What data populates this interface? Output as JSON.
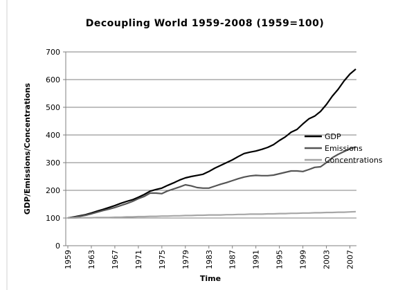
{
  "chart_data": {
    "type": "line",
    "title": "Decoupling World 1959-2008 (1959=100)",
    "x_label": "Time",
    "y_label": "GDP/Emissions/Concentrations",
    "x": [
      1959,
      1960,
      1961,
      1962,
      1963,
      1964,
      1965,
      1966,
      1967,
      1968,
      1969,
      1970,
      1971,
      1972,
      1973,
      1974,
      1975,
      1976,
      1977,
      1978,
      1979,
      1980,
      1981,
      1982,
      1983,
      1984,
      1985,
      1986,
      1987,
      1988,
      1989,
      1990,
      1991,
      1992,
      1993,
      1994,
      1995,
      1996,
      1997,
      1998,
      1999,
      2000,
      2001,
      2002,
      2003,
      2004,
      2005,
      2006,
      2007,
      2008
    ],
    "xlim": [
      1959,
      2008
    ],
    "xticks": [
      1959,
      1963,
      1967,
      1971,
      1975,
      1979,
      1983,
      1987,
      1991,
      1995,
      1999,
      2003,
      2007
    ],
    "ylim": [
      0,
      700
    ],
    "yticks": [
      0,
      100,
      200,
      300,
      400,
      500,
      600,
      700
    ],
    "grid": true,
    "legend": "right",
    "series": [
      {
        "name": "GDP",
        "color": "#000000",
        "values": [
          100,
          104,
          108,
          112,
          118,
          125,
          131,
          138,
          145,
          153,
          160,
          166,
          175,
          185,
          197,
          203,
          208,
          218,
          227,
          237,
          245,
          250,
          254,
          258,
          268,
          280,
          290,
          300,
          310,
          322,
          333,
          338,
          342,
          348,
          355,
          365,
          380,
          393,
          410,
          420,
          440,
          458,
          468,
          485,
          510,
          540,
          565,
          595,
          620,
          638
        ]
      },
      {
        "name": "Emissions",
        "color": "#555555",
        "values": [
          100,
          103,
          106,
          110,
          115,
          121,
          127,
          132,
          138,
          145,
          152,
          160,
          170,
          178,
          190,
          190,
          188,
          198,
          205,
          212,
          220,
          216,
          210,
          208,
          208,
          215,
          222,
          228,
          235,
          242,
          248,
          252,
          254,
          253,
          253,
          255,
          260,
          265,
          270,
          270,
          268,
          275,
          283,
          285,
          300,
          318,
          330,
          340,
          350,
          357
        ]
      },
      {
        "name": "Concentrations",
        "color": "#a6a6a6",
        "values": [
          100,
          100,
          101,
          101,
          101,
          102,
          102,
          102,
          103,
          103,
          104,
          104,
          105,
          105,
          106,
          106,
          107,
          107,
          108,
          108,
          109,
          109,
          110,
          110,
          111,
          111,
          111,
          112,
          112,
          113,
          113,
          114,
          114,
          114,
          115,
          115,
          116,
          116,
          117,
          117,
          118,
          118,
          119,
          119,
          120,
          120,
          121,
          121,
          122,
          123
        ]
      }
    ]
  }
}
